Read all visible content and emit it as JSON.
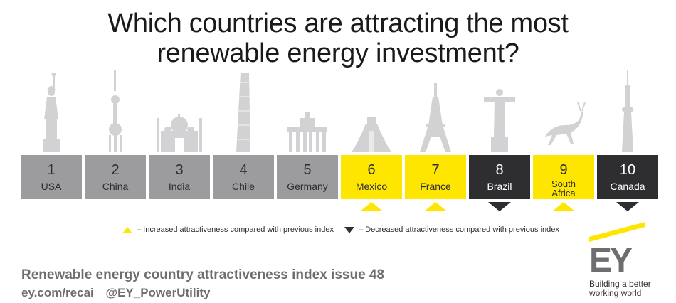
{
  "title": {
    "line1": "Which countries are attracting the most",
    "line2": "renewable energy investment?"
  },
  "colors": {
    "grey_box": "#9c9c9e",
    "yellow_box": "#ffe600",
    "dark_box": "#2e2e30",
    "landmark_grey": "#d2d2d4",
    "text_dark": "#2e2e30"
  },
  "rankings": [
    {
      "rank": "1",
      "country": "USA",
      "style": "grey",
      "landmark": "statue-of-liberty-icon"
    },
    {
      "rank": "2",
      "country": "China",
      "style": "grey",
      "landmark": "oriental-pearl-tower-icon"
    },
    {
      "rank": "3",
      "country": "India",
      "style": "grey",
      "landmark": "taj-mahal-icon"
    },
    {
      "rank": "4",
      "country": "Chile",
      "style": "grey",
      "landmark": "gran-torre-icon"
    },
    {
      "rank": "5",
      "country": "Germany",
      "style": "grey",
      "landmark": "brandenburg-gate-icon"
    },
    {
      "rank": "6",
      "country": "Mexico",
      "style": "yellow",
      "change": "increased",
      "landmark": "chichen-itza-icon"
    },
    {
      "rank": "7",
      "country": "France",
      "style": "yellow",
      "change": "increased",
      "landmark": "eiffel-tower-icon"
    },
    {
      "rank": "8",
      "country": "Brazil",
      "style": "dark",
      "change": "decreased",
      "landmark": "christ-the-redeemer-icon"
    },
    {
      "rank": "9",
      "country": "South Africa",
      "country_lines": [
        "South",
        "Africa"
      ],
      "style": "yellow",
      "change": "increased",
      "landmark": "springbok-icon"
    },
    {
      "rank": "10",
      "country": "Canada",
      "style": "dark",
      "change": "decreased",
      "landmark": "cn-tower-icon"
    }
  ],
  "legend": {
    "increased": "– Increased attractiveness compared with previous index",
    "decreased": "– Decreased attractiveness compared with previous index"
  },
  "footer": {
    "line1": "Renewable energy country attractiveness index issue 48",
    "url": "ey.com/recai",
    "handle": "@EY_PowerUtility"
  },
  "brand": {
    "logo_text": "EY",
    "tagline_line1": "Building a better",
    "tagline_line2": "working world"
  }
}
